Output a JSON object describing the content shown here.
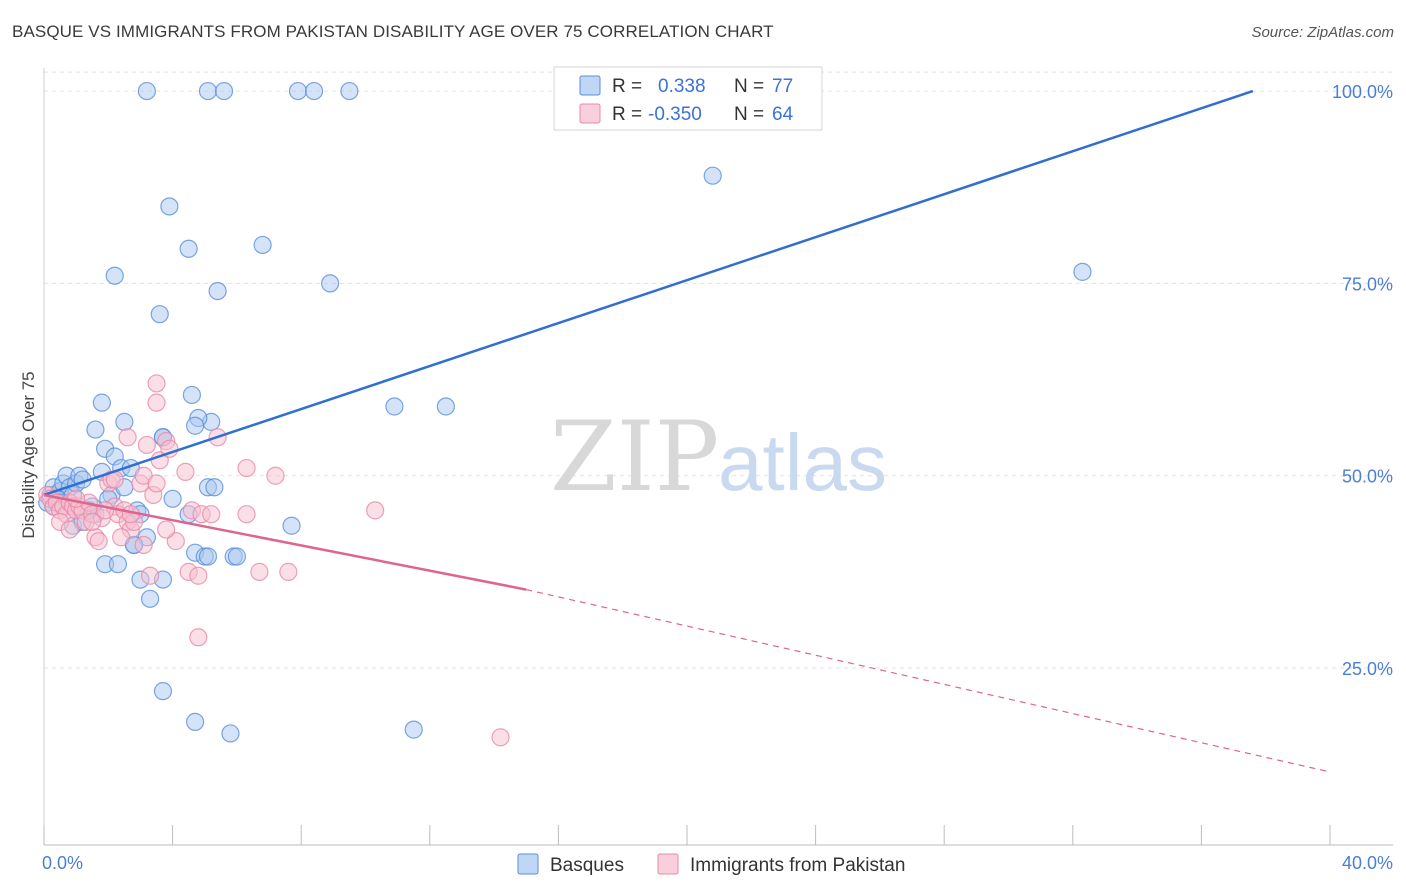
{
  "title": "BASQUE VS IMMIGRANTS FROM PAKISTAN DISABILITY AGE OVER 75 CORRELATION CHART",
  "source": "Source: ZipAtlas.com",
  "watermark": {
    "zip": "ZIP",
    "atlas": "atlas"
  },
  "colors": {
    "basque_fill": "#a9c8f0",
    "basque_stroke": "#5b8fdc",
    "basque_line": "#2f6fd0",
    "pak_fill": "#f7bfd0",
    "pak_stroke": "#e88aa8",
    "pak_line": "#e0648e",
    "tick_text": "#4a7fd4",
    "grid": "#e2e2e2"
  },
  "legend": {
    "rows": [
      {
        "r_label": "R =",
        "r_value": "0.338",
        "n_label": "N =",
        "n_value": "77"
      },
      {
        "r_label": "R =",
        "r_value": "-0.350",
        "n_label": "N =",
        "n_value": "64"
      }
    ]
  },
  "chart_data": {
    "type": "scatter",
    "title": "BASQUE VS IMMIGRANTS FROM PAKISTAN DISABILITY AGE OVER 75 CORRELATION CHART",
    "xlabel": "",
    "ylabel": "Disability Age Over 75",
    "xlim": [
      0,
      40
    ],
    "ylim": [
      2,
      103
    ],
    "x_tick_labels": [
      "0.0%",
      "40.0%"
    ],
    "y_ticks": [
      25,
      50,
      75,
      100
    ],
    "y_tick_labels": [
      "25.0%",
      "50.0%",
      "75.0%",
      "100.0%"
    ],
    "legend_position": "top-center",
    "series": [
      {
        "name": "Basques",
        "points": [
          [
            0.1,
            46.5
          ],
          [
            0.2,
            47.5
          ],
          [
            0.3,
            48.5
          ],
          [
            0.4,
            47
          ],
          [
            0.5,
            48
          ],
          [
            0.6,
            49
          ],
          [
            0.7,
            50
          ],
          [
            0.8,
            48.5
          ],
          [
            0.9,
            47.5
          ],
          [
            1.0,
            49
          ],
          [
            1.1,
            50
          ],
          [
            1.2,
            49.5
          ],
          [
            0.3,
            46
          ],
          [
            0.5,
            46.5
          ],
          [
            0.9,
            43.5
          ],
          [
            1.2,
            44
          ],
          [
            1.5,
            46
          ],
          [
            1.6,
            45
          ],
          [
            1.8,
            50.5
          ],
          [
            1.9,
            53.5
          ],
          [
            2.1,
            47.5
          ],
          [
            2.2,
            52.5
          ],
          [
            2.4,
            51
          ],
          [
            2.5,
            48.5
          ],
          [
            1.6,
            56
          ],
          [
            1.8,
            59.5
          ],
          [
            2.5,
            57
          ],
          [
            2.7,
            51
          ],
          [
            2.9,
            45.5
          ],
          [
            2.8,
            41
          ],
          [
            3.2,
            42
          ],
          [
            3.0,
            36.5
          ],
          [
            3.3,
            34
          ],
          [
            1.9,
            38.5
          ],
          [
            2.3,
            38.5
          ],
          [
            2.8,
            41
          ],
          [
            3.7,
            55
          ],
          [
            4.0,
            47
          ],
          [
            4.5,
            45
          ],
          [
            4.7,
            40
          ],
          [
            5.0,
            39.5
          ],
          [
            5.1,
            39.5
          ],
          [
            5.2,
            57
          ],
          [
            5.1,
            48.5
          ],
          [
            5.9,
            39.5
          ],
          [
            7.7,
            43.5
          ],
          [
            4.8,
            57.5
          ],
          [
            4.7,
            56.5
          ],
          [
            4.6,
            60.5
          ],
          [
            3.7,
            36.5
          ],
          [
            3.7,
            55
          ],
          [
            6.0,
            39.5
          ],
          [
            5.3,
            48.5
          ],
          [
            3.2,
            100
          ],
          [
            5.1,
            100
          ],
          [
            5.6,
            100
          ],
          [
            7.9,
            100
          ],
          [
            8.4,
            100
          ],
          [
            9.5,
            100
          ],
          [
            3.9,
            85
          ],
          [
            4.5,
            79.5
          ],
          [
            6.8,
            80
          ],
          [
            2.2,
            76
          ],
          [
            8.9,
            75
          ],
          [
            5.4,
            74
          ],
          [
            3.6,
            71
          ],
          [
            10.9,
            59
          ],
          [
            12.5,
            59
          ],
          [
            3.7,
            22
          ],
          [
            4.7,
            18
          ],
          [
            5.8,
            16.5
          ],
          [
            11.5,
            17
          ],
          [
            20.8,
            89
          ],
          [
            32.3,
            76.5
          ],
          [
            3.0,
            45
          ],
          [
            2.0,
            47
          ],
          [
            1.4,
            45.5
          ]
        ],
        "trend": {
          "x1": 0,
          "y1": 47.5,
          "x2": 37.6,
          "y2": 100
        }
      },
      {
        "name": "Immigrants from Pakistan",
        "points": [
          [
            0.1,
            47.5
          ],
          [
            0.2,
            47
          ],
          [
            0.3,
            46
          ],
          [
            0.4,
            46.5
          ],
          [
            0.5,
            45.5
          ],
          [
            0.6,
            46
          ],
          [
            0.7,
            45
          ],
          [
            0.8,
            46.5
          ],
          [
            0.9,
            46
          ],
          [
            1.0,
            45.5
          ],
          [
            1.1,
            46
          ],
          [
            1.2,
            45.5
          ],
          [
            1.3,
            44
          ],
          [
            1.4,
            46.5
          ],
          [
            1.5,
            45
          ],
          [
            1.6,
            42
          ],
          [
            1.7,
            41.5
          ],
          [
            1.8,
            44.5
          ],
          [
            2.0,
            49
          ],
          [
            2.1,
            49.5
          ],
          [
            2.2,
            46
          ],
          [
            2.3,
            45
          ],
          [
            2.5,
            45.5
          ],
          [
            2.6,
            44
          ],
          [
            2.7,
            43
          ],
          [
            2.8,
            44
          ],
          [
            3.0,
            49
          ],
          [
            3.1,
            50
          ],
          [
            3.2,
            54
          ],
          [
            3.4,
            47.5
          ],
          [
            3.5,
            49
          ],
          [
            3.6,
            52
          ],
          [
            3.8,
            54.5
          ],
          [
            3.9,
            53.5
          ],
          [
            4.1,
            41.5
          ],
          [
            4.4,
            50.5
          ],
          [
            4.6,
            45.5
          ],
          [
            4.9,
            45
          ],
          [
            5.2,
            45
          ],
          [
            5.4,
            55
          ],
          [
            6.3,
            51
          ],
          [
            7.2,
            50
          ],
          [
            3.5,
            59.5
          ],
          [
            3.5,
            62
          ],
          [
            2.6,
            55
          ],
          [
            3.3,
            37
          ],
          [
            3.1,
            41
          ],
          [
            4.5,
            37.5
          ],
          [
            4.8,
            37
          ],
          [
            6.7,
            37.5
          ],
          [
            7.6,
            37.5
          ],
          [
            4.8,
            29
          ],
          [
            10.3,
            45.5
          ],
          [
            14.2,
            16
          ],
          [
            2.2,
            49.5
          ],
          [
            1.0,
            47
          ],
          [
            1.5,
            44
          ],
          [
            0.5,
            44
          ],
          [
            2.4,
            42
          ],
          [
            3.8,
            43
          ],
          [
            6.3,
            45
          ],
          [
            0.8,
            43
          ],
          [
            1.9,
            45.5
          ],
          [
            2.7,
            45
          ]
        ],
        "trend": {
          "x1": 0,
          "y1": 47.5,
          "x2": 15,
          "y2": 35.2
        },
        "trend_dashed": {
          "x1": 15,
          "y1": 35.2,
          "x2": 40,
          "y2": 11.5
        }
      }
    ]
  }
}
